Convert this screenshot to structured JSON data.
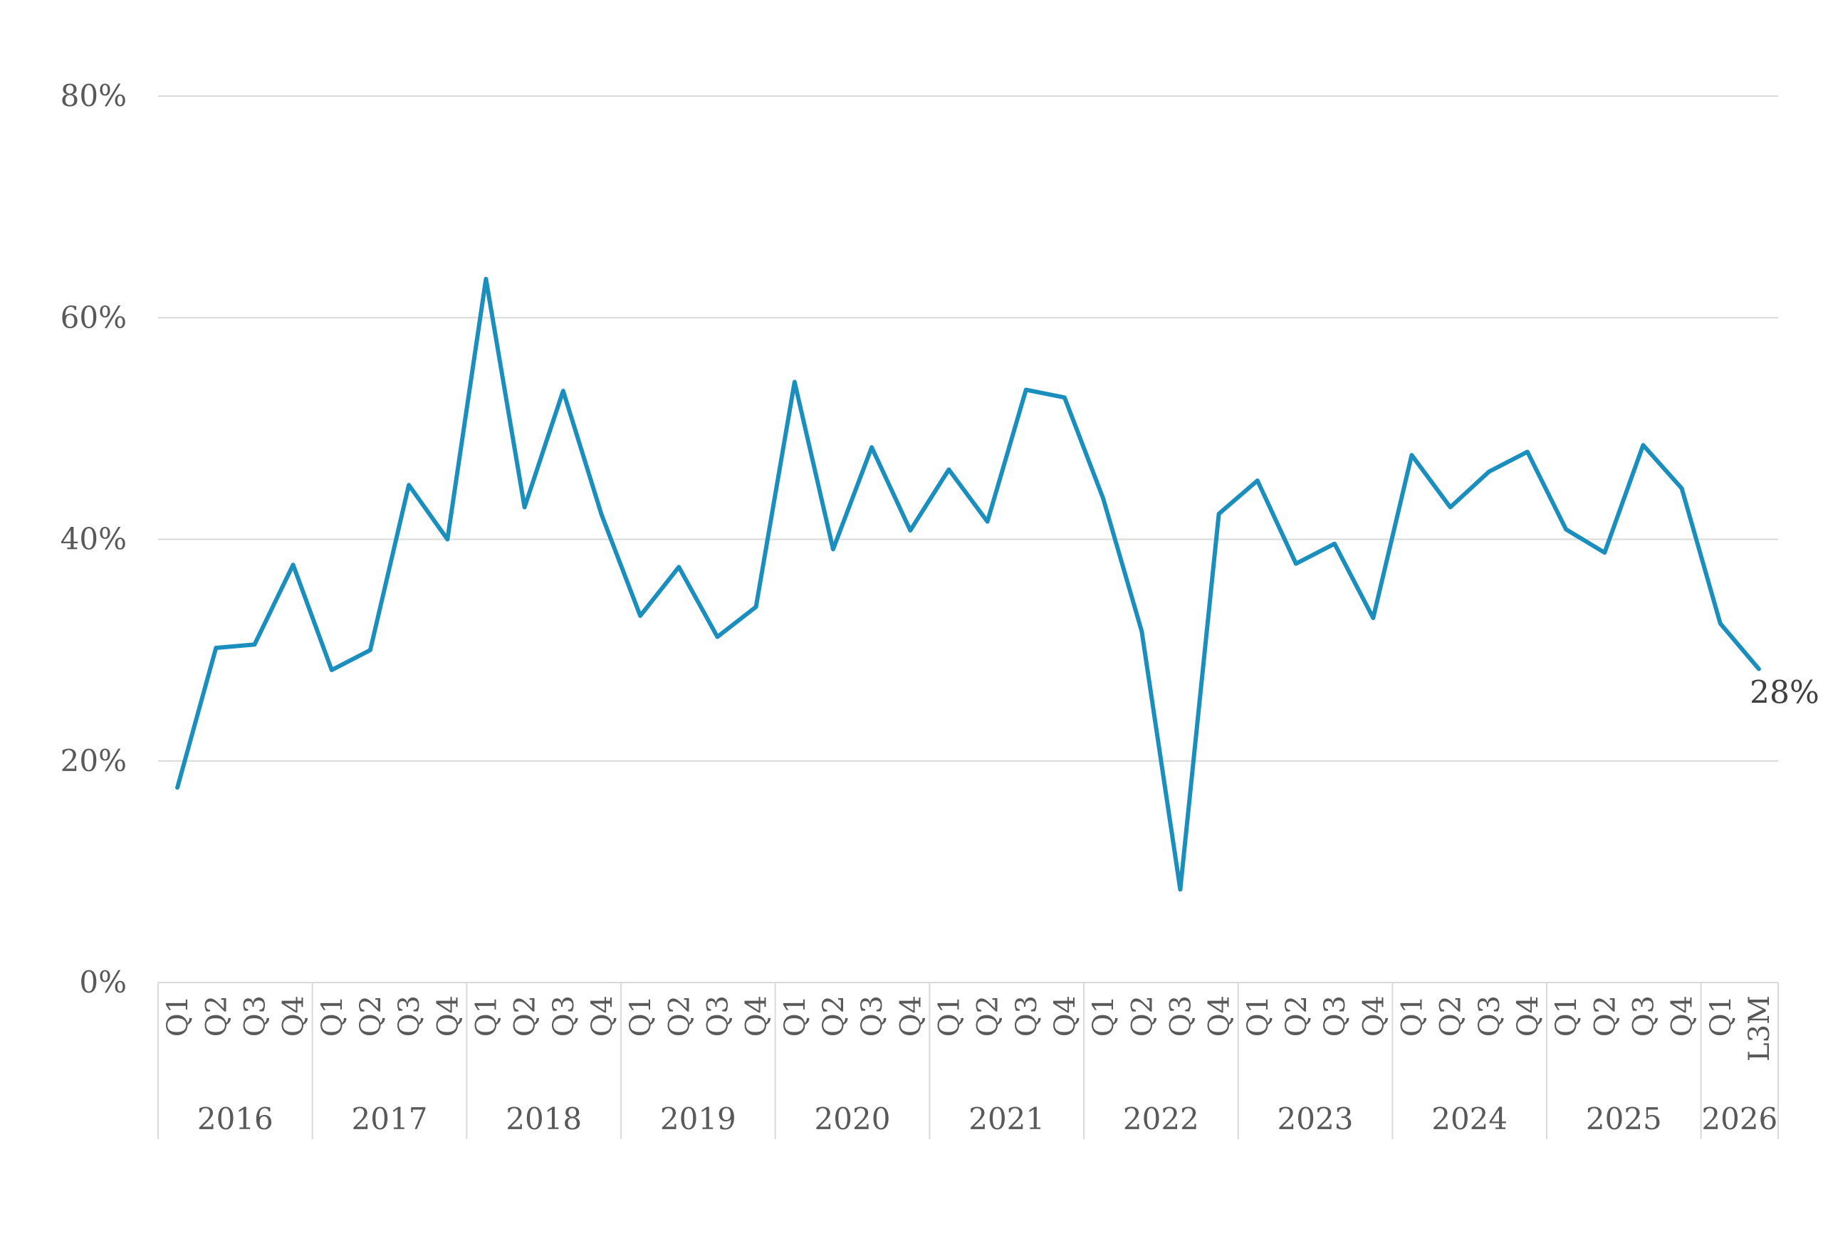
{
  "chart_data": {
    "type": "line",
    "title": "",
    "xlabel": "",
    "ylabel": "",
    "ylim": [
      0,
      80
    ],
    "yticks": [
      "0%",
      "20%",
      "40%",
      "60%",
      "80%"
    ],
    "grid": true,
    "legend": "none",
    "colors": {
      "line": "#1a8fbd",
      "grid": "#d9d9d9",
      "text": "#595959"
    },
    "groups": [
      {
        "year": "2016",
        "quarters": [
          "Q1",
          "Q2",
          "Q3",
          "Q4"
        ]
      },
      {
        "year": "2017",
        "quarters": [
          "Q1",
          "Q2",
          "Q3",
          "Q4"
        ]
      },
      {
        "year": "2018",
        "quarters": [
          "Q1",
          "Q2",
          "Q3",
          "Q4"
        ]
      },
      {
        "year": "2019",
        "quarters": [
          "Q1",
          "Q2",
          "Q3",
          "Q4"
        ]
      },
      {
        "year": "2020",
        "quarters": [
          "Q1",
          "Q2",
          "Q3",
          "Q4"
        ]
      },
      {
        "year": "2021",
        "quarters": [
          "Q1",
          "Q2",
          "Q3",
          "Q4"
        ]
      },
      {
        "year": "2022",
        "quarters": [
          "Q1",
          "Q2",
          "Q3",
          "Q4"
        ]
      },
      {
        "year": "2023",
        "quarters": [
          "Q1",
          "Q2",
          "Q3",
          "Q4"
        ]
      },
      {
        "year": "2024",
        "quarters": [
          "Q1",
          "Q2",
          "Q3",
          "Q4"
        ]
      },
      {
        "year": "2025",
        "quarters": [
          "Q1",
          "Q2",
          "Q3",
          "Q4"
        ]
      },
      {
        "year": "2026",
        "quarters": [
          "Q1",
          "L3M"
        ]
      }
    ],
    "series": [
      {
        "values": [
          17.6,
          30.2,
          30.5,
          37.7,
          28.2,
          30.0,
          44.9,
          40.0,
          63.5,
          42.9,
          53.4,
          42.2,
          33.1,
          37.5,
          31.2,
          33.9,
          54.2,
          39.1,
          48.3,
          40.8,
          46.3,
          41.6,
          53.5,
          52.8,
          43.7,
          31.7,
          8.4,
          42.3,
          45.3,
          37.8,
          39.6,
          32.9,
          47.6,
          42.9,
          46.1,
          47.9,
          40.9,
          38.8,
          48.5,
          44.6,
          32.4,
          28.3
        ]
      }
    ],
    "data_labels": [
      {
        "index": 41,
        "text": "28%"
      }
    ]
  }
}
